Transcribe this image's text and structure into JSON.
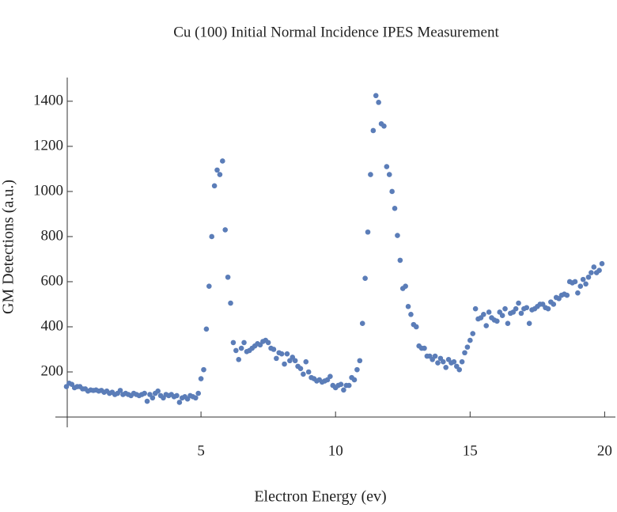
{
  "chart_data": {
    "type": "scatter",
    "title": "Cu (100) Initial Normal Incidence IPES Measurement",
    "x_label": "Electron Energy (ev)",
    "y_label": "GM Detections (a.u.)",
    "xlim": [
      0,
      20.4
    ],
    "ylim": [
      0,
      1505
    ],
    "xticks": [
      5,
      10,
      15,
      20
    ],
    "yticks": [
      200,
      400,
      600,
      800,
      1000,
      1200,
      1400
    ],
    "color": "#5b7db8",
    "x": [
      0.0,
      0.1,
      0.2,
      0.3,
      0.4,
      0.5,
      0.6,
      0.7,
      0.8,
      0.9,
      1.0,
      1.1,
      1.2,
      1.3,
      1.4,
      1.5,
      1.6,
      1.7,
      1.8,
      1.9,
      2.0,
      2.1,
      2.2,
      2.3,
      2.4,
      2.5,
      2.6,
      2.7,
      2.8,
      2.9,
      3.0,
      3.1,
      3.2,
      3.3,
      3.4,
      3.5,
      3.6,
      3.7,
      3.8,
      3.9,
      4.0,
      4.1,
      4.2,
      4.3,
      4.4,
      4.5,
      4.6,
      4.7,
      4.8,
      4.9,
      5.0,
      5.1,
      5.2,
      5.3,
      5.4,
      5.5,
      5.6,
      5.7,
      5.8,
      5.9,
      6.0,
      6.1,
      6.2,
      6.3,
      6.4,
      6.5,
      6.6,
      6.7,
      6.8,
      6.9,
      7.0,
      7.1,
      7.2,
      7.3,
      7.4,
      7.5,
      7.6,
      7.7,
      7.8,
      7.9,
      8.0,
      8.1,
      8.2,
      8.3,
      8.4,
      8.5,
      8.6,
      8.7,
      8.8,
      8.9,
      9.0,
      9.1,
      9.2,
      9.3,
      9.4,
      9.5,
      9.6,
      9.7,
      9.8,
      9.9,
      10.0,
      10.1,
      10.2,
      10.3,
      10.4,
      10.5,
      10.6,
      10.7,
      10.8,
      10.9,
      11.0,
      11.1,
      11.2,
      11.3,
      11.4,
      11.5,
      11.6,
      11.7,
      11.8,
      11.9,
      12.0,
      12.1,
      12.2,
      12.3,
      12.4,
      12.5,
      12.6,
      12.7,
      12.8,
      12.9,
      13.0,
      13.1,
      13.2,
      13.3,
      13.4,
      13.5,
      13.6,
      13.7,
      13.8,
      13.9,
      14.0,
      14.1,
      14.2,
      14.3,
      14.4,
      14.5,
      14.6,
      14.7,
      14.8,
      14.9,
      15.0,
      15.1,
      15.2,
      15.3,
      15.4,
      15.5,
      15.6,
      15.7,
      15.8,
      15.9,
      16.0,
      16.1,
      16.2,
      16.3,
      16.4,
      16.5,
      16.6,
      16.7,
      16.8,
      16.9,
      17.0,
      17.1,
      17.2,
      17.3,
      17.4,
      17.5,
      17.6,
      17.7,
      17.8,
      17.9,
      18.0,
      18.1,
      18.2,
      18.3,
      18.4,
      18.5,
      18.6,
      18.7,
      18.8,
      18.9,
      19.0,
      19.1,
      19.2,
      19.3,
      19.4,
      19.5,
      19.6,
      19.7,
      19.8,
      19.9
    ],
    "values": [
      135,
      150,
      145,
      130,
      135,
      135,
      125,
      125,
      115,
      120,
      118,
      120,
      115,
      118,
      110,
      115,
      105,
      110,
      100,
      105,
      118,
      100,
      105,
      100,
      95,
      105,
      100,
      95,
      100,
      105,
      70,
      100,
      85,
      105,
      115,
      95,
      85,
      100,
      95,
      100,
      90,
      95,
      65,
      85,
      90,
      80,
      95,
      90,
      85,
      105,
      170,
      210,
      390,
      580,
      800,
      1025,
      1095,
      1075,
      1135,
      830,
      620,
      505,
      330,
      295,
      255,
      305,
      330,
      290,
      295,
      305,
      315,
      325,
      320,
      335,
      340,
      330,
      305,
      300,
      260,
      285,
      280,
      235,
      280,
      250,
      265,
      250,
      225,
      215,
      190,
      245,
      200,
      175,
      170,
      160,
      165,
      155,
      160,
      165,
      180,
      140,
      130,
      140,
      145,
      120,
      140,
      140,
      175,
      165,
      210,
      250,
      415,
      615,
      820,
      1075,
      1270,
      1425,
      1395,
      1300,
      1290,
      1110,
      1075,
      1000,
      925,
      805,
      695,
      570,
      580,
      490,
      455,
      410,
      400,
      315,
      305,
      305,
      270,
      270,
      255,
      270,
      240,
      260,
      245,
      220,
      255,
      240,
      245,
      225,
      210,
      245,
      285,
      310,
      340,
      370,
      480,
      435,
      440,
      455,
      405,
      465,
      440,
      430,
      425,
      465,
      450,
      480,
      415,
      460,
      465,
      480,
      505,
      460,
      480,
      485,
      415,
      475,
      480,
      490,
      500,
      500,
      485,
      480,
      510,
      500,
      530,
      525,
      540,
      545,
      540,
      600,
      595,
      600,
      550,
      580,
      610,
      590,
      620,
      640,
      665,
      640,
      650,
      680
    ]
  }
}
